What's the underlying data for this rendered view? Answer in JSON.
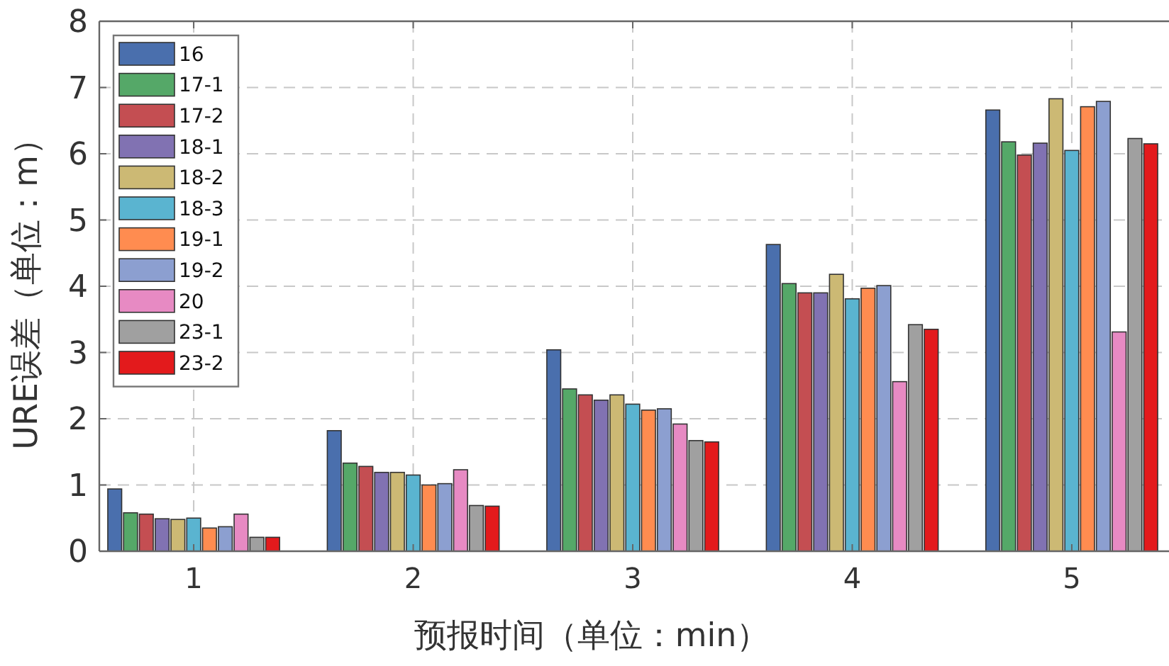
{
  "chart_data": {
    "type": "bar",
    "xlabel": "预报时间（单位：min）",
    "ylabel": "URE误差（单位：m）",
    "categories": [
      "1",
      "2",
      "3",
      "4",
      "5"
    ],
    "ylim": [
      0,
      8
    ],
    "yticks": [
      0,
      1,
      2,
      3,
      4,
      5,
      6,
      7,
      8
    ],
    "grid": true,
    "legend": "top left",
    "series": [
      {
        "name": "16",
        "color": "#4a6fad",
        "values": [
          0.94,
          1.82,
          3.04,
          4.63,
          6.66
        ]
      },
      {
        "name": "17-1",
        "color": "#55a868",
        "values": [
          0.58,
          1.33,
          2.45,
          4.04,
          6.18
        ]
      },
      {
        "name": "17-2",
        "color": "#c44e52",
        "values": [
          0.56,
          1.28,
          2.36,
          3.9,
          5.98
        ]
      },
      {
        "name": "18-1",
        "color": "#8172b2",
        "values": [
          0.49,
          1.19,
          2.28,
          3.9,
          6.16
        ]
      },
      {
        "name": "18-2",
        "color": "#ccb974",
        "values": [
          0.48,
          1.19,
          2.36,
          4.18,
          6.83
        ]
      },
      {
        "name": "18-3",
        "color": "#5ab4d0",
        "values": [
          0.5,
          1.15,
          2.22,
          3.81,
          6.05
        ]
      },
      {
        "name": "19-1",
        "color": "#ff8c50",
        "values": [
          0.35,
          1.0,
          2.13,
          3.97,
          6.71
        ]
      },
      {
        "name": "19-2",
        "color": "#8c9fd0",
        "values": [
          0.37,
          1.02,
          2.15,
          4.01,
          6.79
        ]
      },
      {
        "name": "20",
        "color": "#e78ac3",
        "values": [
          0.56,
          1.23,
          1.92,
          2.56,
          3.31
        ]
      },
      {
        "name": "23-1",
        "color": "#a0a0a0",
        "values": [
          0.21,
          0.69,
          1.67,
          3.42,
          6.23
        ]
      },
      {
        "name": "23-2",
        "color": "#e31a1c",
        "values": [
          0.21,
          0.68,
          1.65,
          3.35,
          6.15
        ]
      }
    ]
  }
}
